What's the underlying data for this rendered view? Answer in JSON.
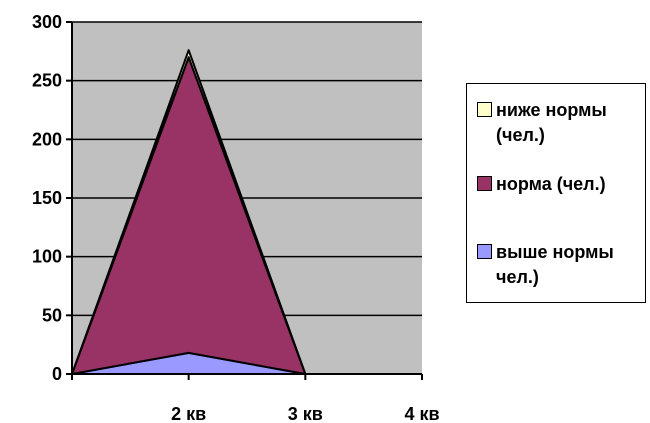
{
  "chart_data": {
    "type": "area",
    "stacked": true,
    "categories": [
      "",
      "2 кв",
      "3 кв",
      "4 кв"
    ],
    "series": [
      {
        "name": "выше нормы чел.)",
        "values": [
          0,
          18,
          0,
          null
        ],
        "color": "#9999FF"
      },
      {
        "name": "норма (чел.)",
        "values": [
          0,
          252,
          0,
          null
        ],
        "color": "#993366"
      },
      {
        "name": "ниже нормы (чел.)",
        "values": [
          0,
          6,
          0,
          null
        ],
        "color": "#FFFFCC"
      }
    ],
    "ylim": [
      0,
      300
    ],
    "yticks": [
      "0",
      "50",
      "100",
      "150",
      "200",
      "250",
      "300"
    ],
    "grid": true,
    "plot_background": "#C0C0C0",
    "legend_position": "right"
  }
}
